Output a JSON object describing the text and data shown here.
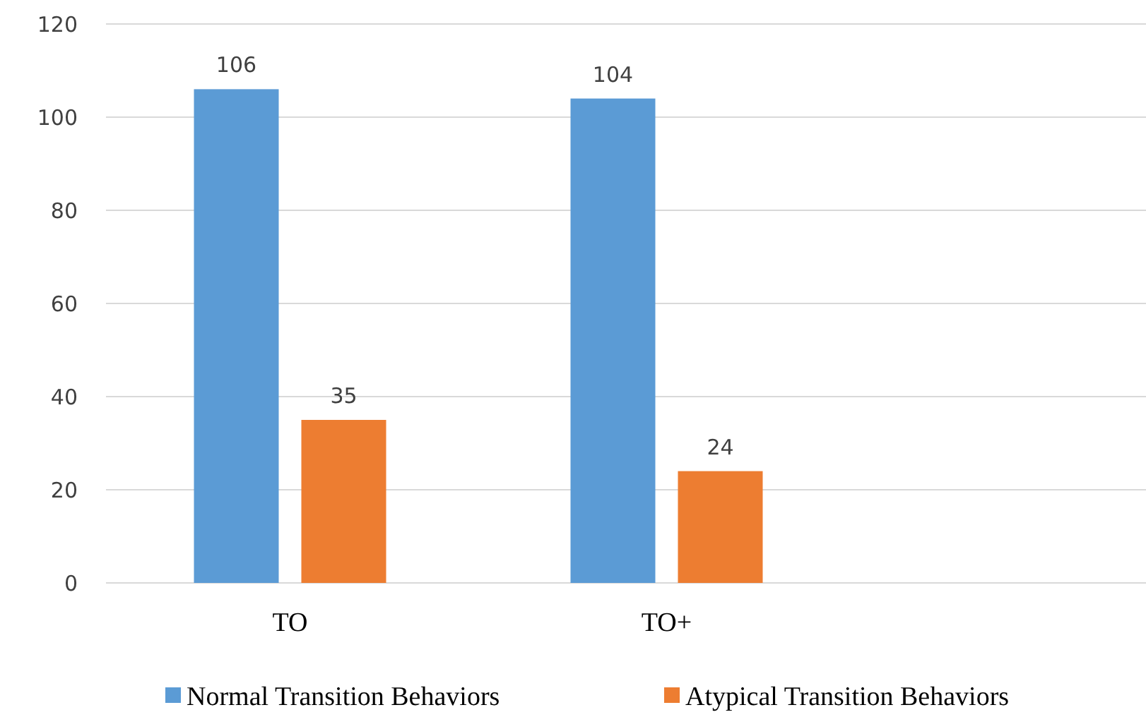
{
  "chart_data": {
    "type": "bar",
    "categories": [
      "TO",
      "TO+"
    ],
    "series": [
      {
        "name": "Normal Transition Behaviors",
        "color": "#5b9bd5",
        "values": [
          106,
          104
        ]
      },
      {
        "name": "Atypical Transition Behaviors",
        "color": "#ed7d31",
        "values": [
          35,
          24
        ]
      }
    ],
    "ylim": [
      0,
      120
    ],
    "yticks": [
      0,
      20,
      40,
      60,
      80,
      100,
      120
    ],
    "grid": "y",
    "legend": "bottom",
    "data_labels": true
  }
}
